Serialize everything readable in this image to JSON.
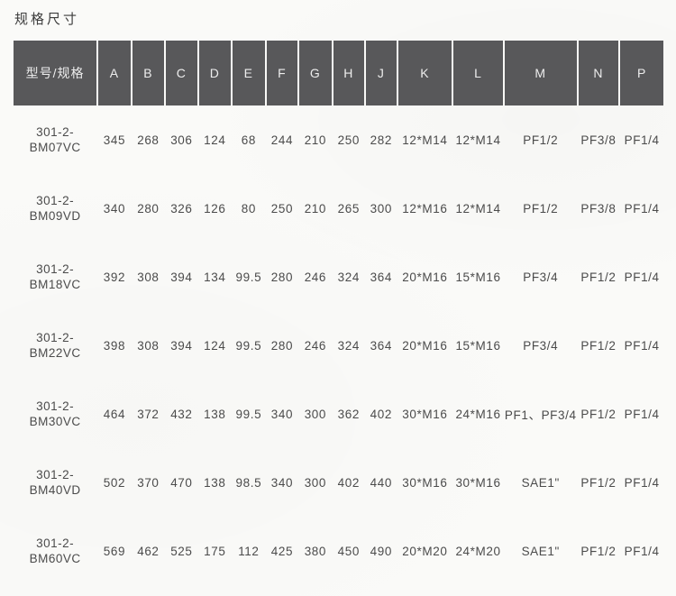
{
  "page_title": "规格尺寸",
  "table": {
    "model_header": "型号/规格",
    "columns": [
      "A",
      "B",
      "C",
      "D",
      "E",
      "F",
      "G",
      "H",
      "J",
      "K",
      "L",
      "M",
      "N",
      "P"
    ],
    "rows": [
      {
        "model": [
          "301-2-",
          "BM07VC"
        ],
        "values": [
          "345",
          "268",
          "306",
          "124",
          "68",
          "244",
          "210",
          "250",
          "282",
          "12*M14",
          "12*M14",
          "PF1/2",
          "PF3/8",
          "PF1/4"
        ]
      },
      {
        "model": [
          "301-2-",
          "BM09VD"
        ],
        "values": [
          "340",
          "280",
          "326",
          "126",
          "80",
          "250",
          "210",
          "265",
          "300",
          "12*M16",
          "12*M14",
          "PF1/2",
          "PF3/8",
          "PF1/4"
        ]
      },
      {
        "model": [
          "301-2-",
          "BM18VC"
        ],
        "values": [
          "392",
          "308",
          "394",
          "134",
          "99.5",
          "280",
          "246",
          "324",
          "364",
          "20*M16",
          "15*M16",
          "PF3/4",
          "PF1/2",
          "PF1/4"
        ]
      },
      {
        "model": [
          "301-2-",
          "BM22VC"
        ],
        "values": [
          "398",
          "308",
          "394",
          "124",
          "99.5",
          "280",
          "246",
          "324",
          "364",
          "20*M16",
          "15*M16",
          "PF3/4",
          "PF1/2",
          "PF1/4"
        ]
      },
      {
        "model": [
          "301-2-",
          "BM30VC"
        ],
        "values": [
          "464",
          "372",
          "432",
          "138",
          "99.5",
          "340",
          "300",
          "362",
          "402",
          "30*M16",
          "24*M16",
          "PF1、PF3/4",
          "PF1/2",
          "PF1/4"
        ]
      },
      {
        "model": [
          "301-2-",
          "BM40VD"
        ],
        "values": [
          "502",
          "370",
          "470",
          "138",
          "98.5",
          "340",
          "300",
          "402",
          "440",
          "30*M16",
          "30*M16",
          "SAE1\"",
          "PF1/2",
          "PF1/4"
        ]
      },
      {
        "model": [
          "301-2-",
          "BM60VC"
        ],
        "values": [
          "569",
          "462",
          "525",
          "175",
          "112",
          "425",
          "380",
          "450",
          "490",
          "20*M20",
          "24*M20",
          "SAE1\"",
          "PF1/2",
          "PF1/4"
        ]
      }
    ]
  },
  "colors": {
    "header_bg": "#58585a",
    "header_text": "#ededed",
    "body_text": "#4b4b4b",
    "page_bg": "#fafaf8"
  }
}
